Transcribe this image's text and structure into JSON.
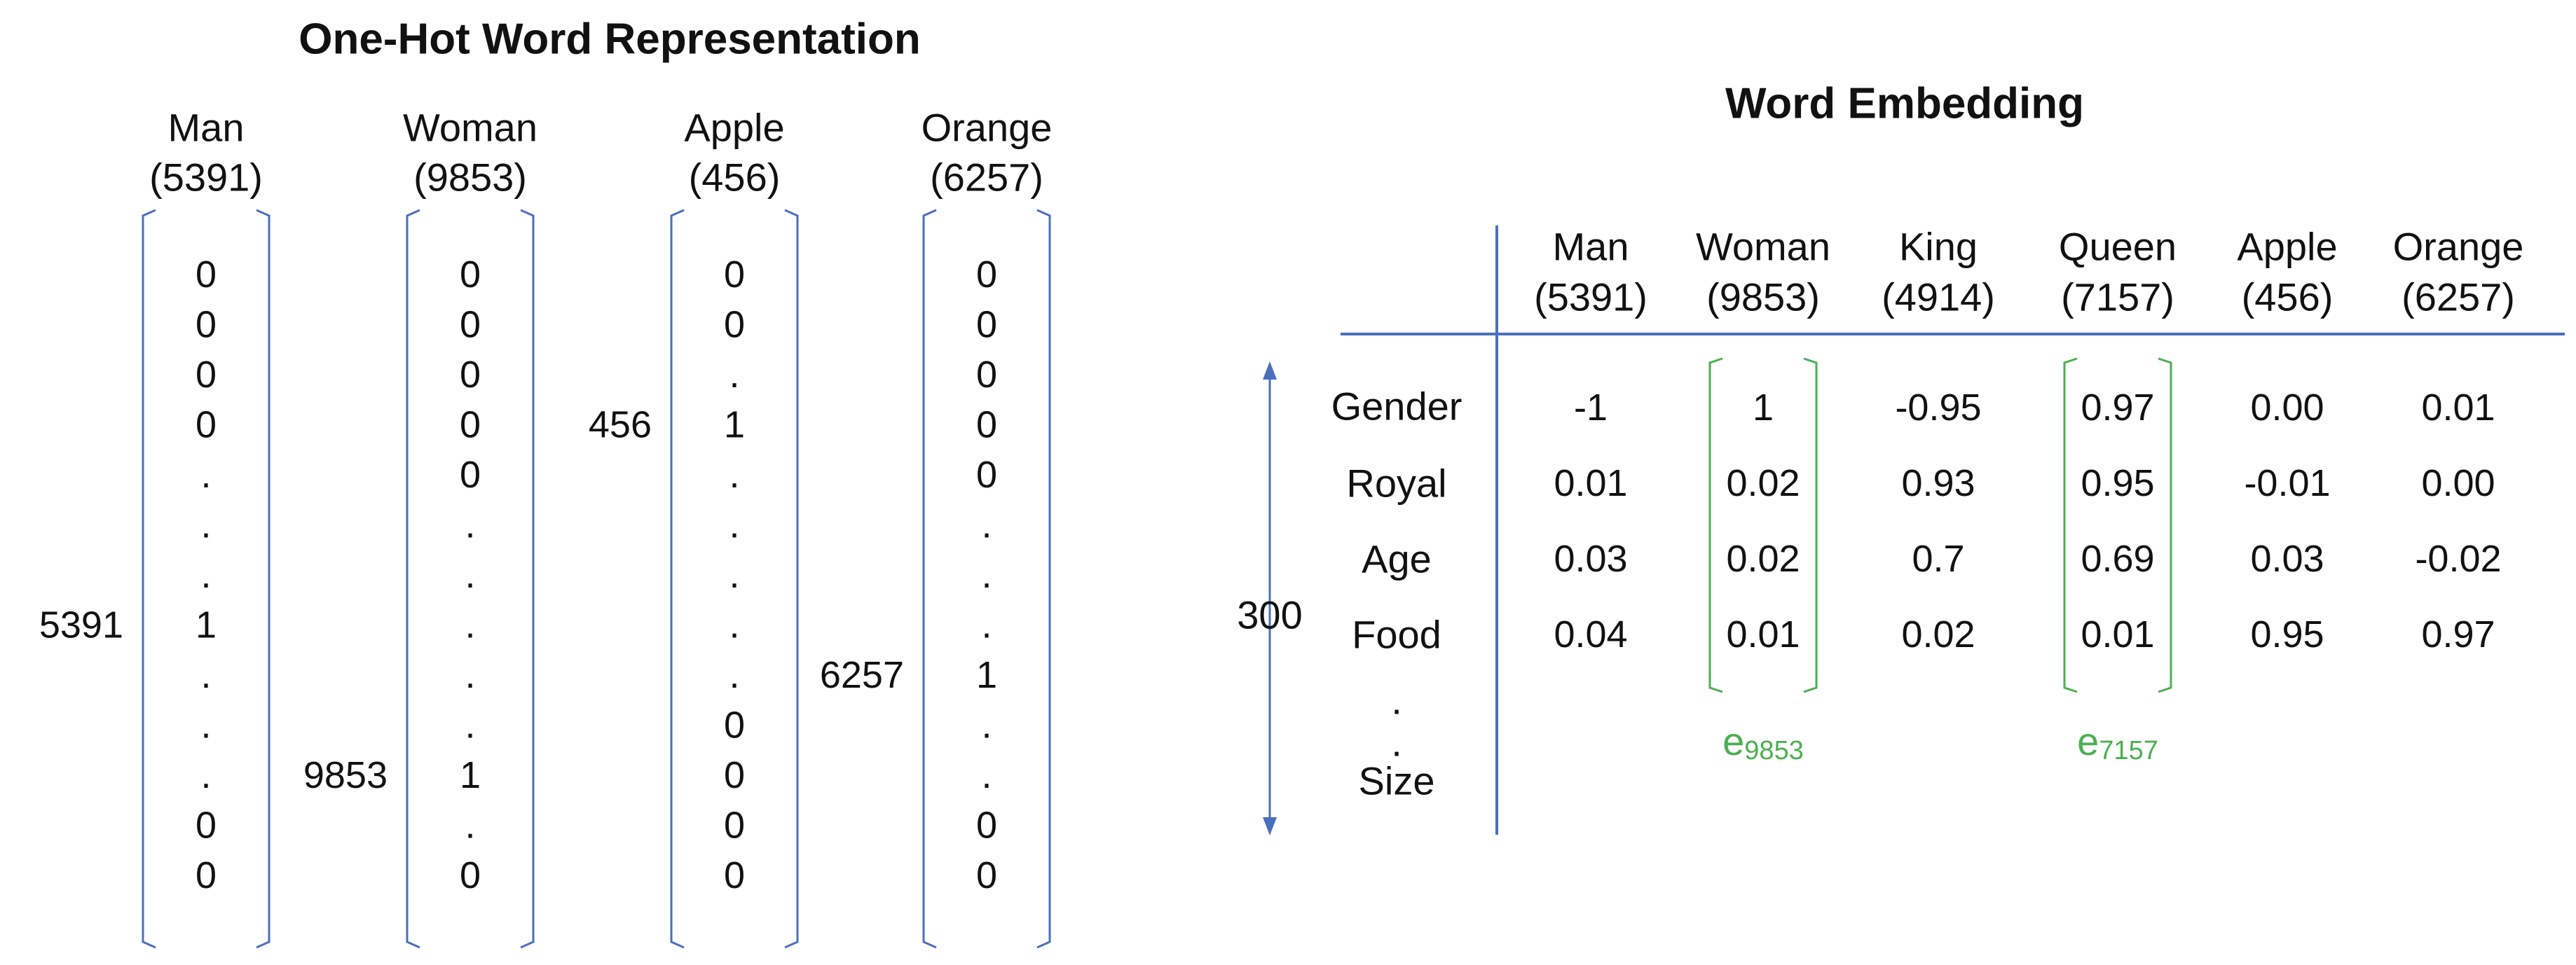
{
  "one_hot": {
    "title": "One-Hot Word Representation",
    "vectors": [
      {
        "word": "Man",
        "index": "(5391)",
        "side_label": "5391",
        "side_row": 7,
        "cells": [
          "0",
          "0",
          "0",
          "0",
          ".",
          ".",
          ".",
          "1",
          ".",
          ".",
          ".",
          "0",
          "0"
        ]
      },
      {
        "word": "Woman",
        "index": "(9853)",
        "side_label": "9853",
        "side_row": 10,
        "cells": [
          "0",
          "0",
          "0",
          "0",
          "0",
          ".",
          ".",
          ".",
          ".",
          ".",
          "1",
          ".",
          "0"
        ]
      },
      {
        "word": "Apple",
        "index": "(456)",
        "side_label": "456",
        "side_row": 3,
        "cells": [
          "0",
          "0",
          ".",
          "1",
          ".",
          ".",
          ".",
          ".",
          ".",
          "0",
          "0",
          "0",
          "0"
        ]
      },
      {
        "word": "Orange",
        "index": "(6257)",
        "side_label": "6257",
        "side_row": 8,
        "cells": [
          "0",
          "0",
          "0",
          "0",
          "0",
          ".",
          ".",
          ".",
          "1",
          ".",
          ".",
          "0",
          "0"
        ]
      }
    ]
  },
  "embedding": {
    "title": "Word Embedding",
    "columns": [
      {
        "word": "Man",
        "index": "(5391)"
      },
      {
        "word": "Woman",
        "index": "(9853)"
      },
      {
        "word": "King",
        "index": "(4914)"
      },
      {
        "word": "Queen",
        "index": "(7157)"
      },
      {
        "word": "Apple",
        "index": "(456)"
      },
      {
        "word": "Orange",
        "index": "(6257)"
      }
    ],
    "row_labels": [
      "Gender",
      "Royal",
      "Age",
      "Food",
      ".",
      ".",
      "Size"
    ],
    "values": [
      [
        "-1",
        "1",
        "-0.95",
        "0.97",
        "0.00",
        "0.01"
      ],
      [
        "0.01",
        "0.02",
        "0.93",
        "0.95",
        "-0.01",
        "0.00"
      ],
      [
        "0.03",
        "0.02",
        "0.7",
        "0.69",
        "0.03",
        "-0.02"
      ],
      [
        "0.04",
        "0.01",
        "0.02",
        "0.01",
        "0.95",
        "0.97"
      ]
    ],
    "dimension_label": "300",
    "highlights": [
      {
        "column": 1,
        "base": "e",
        "subscript": "9853"
      },
      {
        "column": 3,
        "base": "e",
        "subscript": "7157"
      }
    ]
  },
  "colors": {
    "text": "#111111",
    "lines": "#4a6fbd",
    "highlight": "#4caf50"
  }
}
